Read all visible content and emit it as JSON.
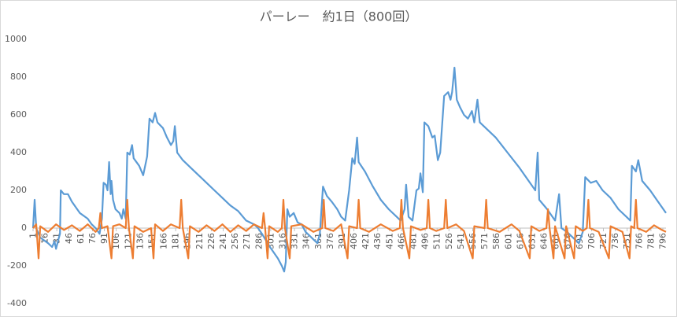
{
  "chart_data": {
    "type": "line",
    "title": "パーレー　約1日（800回）",
    "xlim": [
      1,
      800
    ],
    "xticks": [
      1,
      16,
      31,
      46,
      61,
      76,
      91,
      106,
      121,
      136,
      151,
      166,
      181,
      196,
      211,
      226,
      241,
      256,
      271,
      286,
      301,
      316,
      331,
      346,
      361,
      376,
      391,
      406,
      421,
      436,
      451,
      466,
      481,
      496,
      511,
      526,
      541,
      556,
      571,
      586,
      601,
      616,
      631,
      646,
      661,
      676,
      691,
      706,
      721,
      736,
      751,
      766,
      781,
      796
    ],
    "ylim": [
      -400,
      1000
    ],
    "yticks": [
      -400,
      -200,
      0,
      200,
      400,
      600,
      800,
      1000
    ],
    "grid": false,
    "series": [
      {
        "color": "#5b9bd5",
        "x": [
          1,
          3,
          5,
          10,
          20,
          25,
          28,
          30,
          33,
          35,
          36,
          40,
          45,
          50,
          60,
          70,
          75,
          80,
          85,
          88,
          90,
          93,
          95,
          97,
          99,
          100,
          102,
          105,
          110,
          113,
          115,
          118,
          120,
          123,
          126,
          128,
          135,
          140,
          145,
          148,
          152,
          155,
          158,
          165,
          170,
          175,
          178,
          180,
          183,
          190,
          200,
          210,
          220,
          230,
          240,
          250,
          260,
          270,
          280,
          285,
          290,
          300,
          310,
          315,
          318,
          320,
          322,
          325,
          330,
          335,
          340,
          345,
          350,
          355,
          360,
          363,
          367,
          372,
          378,
          385,
          390,
          395,
          400,
          404,
          407,
          410,
          412,
          420,
          430,
          440,
          450,
          460,
          465,
          470,
          472,
          475,
          480,
          485,
          488,
          490,
          493,
          495,
          500,
          505,
          508,
          512,
          515,
          520,
          525,
          528,
          530,
          533,
          536,
          540,
          545,
          550,
          555,
          558,
          562,
          565,
          575,
          585,
          600,
          615,
          630,
          635,
          638,
          640,
          650,
          660,
          665,
          668,
          675,
          680,
          685,
          690,
          695,
          698,
          705,
          712,
          720,
          730,
          740,
          750,
          755,
          757,
          762,
          765,
          770,
          780,
          790,
          800
        ],
        "values": [
          0,
          150,
          0,
          -50,
          -80,
          -100,
          -70,
          -110,
          -60,
          -30,
          200,
          180,
          180,
          140,
          80,
          50,
          20,
          0,
          -30,
          50,
          240,
          230,
          200,
          350,
          180,
          250,
          150,
          100,
          80,
          50,
          100,
          50,
          400,
          390,
          440,
          370,
          330,
          280,
          380,
          580,
          560,
          610,
          560,
          530,
          480,
          440,
          460,
          540,
          400,
          360,
          320,
          280,
          240,
          200,
          160,
          120,
          90,
          40,
          20,
          0,
          -30,
          -100,
          -160,
          -200,
          -230,
          -180,
          100,
          60,
          80,
          30,
          20,
          -20,
          -40,
          -60,
          -80,
          -30,
          220,
          170,
          140,
          100,
          60,
          40,
          200,
          370,
          340,
          480,
          350,
          300,
          220,
          150,
          100,
          60,
          40,
          100,
          230,
          60,
          40,
          200,
          210,
          290,
          190,
          560,
          540,
          480,
          490,
          360,
          400,
          700,
          720,
          680,
          720,
          850,
          680,
          640,
          600,
          580,
          620,
          560,
          680,
          560,
          520,
          480,
          400,
          320,
          230,
          200,
          400,
          150,
          100,
          40,
          180,
          0,
          -20,
          -40,
          -60,
          -80,
          -20,
          270,
          240,
          250,
          200,
          160,
          100,
          60,
          40,
          330,
          300,
          360,
          250,
          200,
          140,
          80
        ]
      },
      {
        "color": "#ed7d31",
        "x": [
          1,
          5,
          8,
          10,
          20,
          30,
          40,
          50,
          60,
          70,
          80,
          84,
          86,
          88,
          95,
          100,
          102,
          110,
          118,
          120,
          122,
          127,
          129,
          140,
          150,
          153,
          155,
          165,
          175,
          186,
          188,
          190,
          197,
          199,
          210,
          220,
          230,
          240,
          250,
          260,
          270,
          280,
          290,
          292,
          294,
          297,
          299,
          310,
          315,
          317,
          319,
          325,
          327,
          340,
          355,
          366,
          368,
          370,
          380,
          390,
          398,
          400,
          410,
          412,
          414,
          425,
          440,
          455,
          464,
          466,
          468,
          476,
          478,
          490,
          498,
          500,
          502,
          510,
          520,
          522,
          524,
          535,
          545,
          556,
          558,
          571,
          573,
          575,
          590,
          605,
          615,
          628,
          630,
          640,
          649,
          651,
          653,
          658,
          660,
          672,
          674,
          684,
          686,
          695,
          700,
          702,
          704,
          715,
          728,
          730,
          745,
          754,
          756,
          760,
          762,
          764,
          775,
          785,
          795,
          800
        ],
        "values": [
          0,
          20,
          -160,
          10,
          -20,
          20,
          -10,
          15,
          -15,
          20,
          -20,
          0,
          80,
          0,
          10,
          -160,
          10,
          20,
          0,
          150,
          0,
          -160,
          10,
          -20,
          0,
          -160,
          20,
          -15,
          20,
          0,
          150,
          0,
          -160,
          10,
          -20,
          15,
          -15,
          20,
          -20,
          15,
          -15,
          20,
          0,
          80,
          0,
          -160,
          10,
          -20,
          0,
          150,
          0,
          -160,
          10,
          20,
          -20,
          0,
          150,
          0,
          -15,
          20,
          -160,
          10,
          0,
          150,
          0,
          -20,
          20,
          -15,
          0,
          150,
          0,
          -160,
          10,
          -10,
          0,
          150,
          0,
          -15,
          0,
          150,
          0,
          20,
          -15,
          -160,
          10,
          0,
          150,
          0,
          -20,
          20,
          -15,
          -160,
          10,
          -15,
          0,
          100,
          0,
          -160,
          10,
          -160,
          10,
          -160,
          10,
          -15,
          0,
          150,
          0,
          -20,
          -160,
          10,
          -20,
          -160,
          10,
          0,
          150,
          0,
          -20,
          15,
          -10,
          -20
        ]
      }
    ]
  }
}
